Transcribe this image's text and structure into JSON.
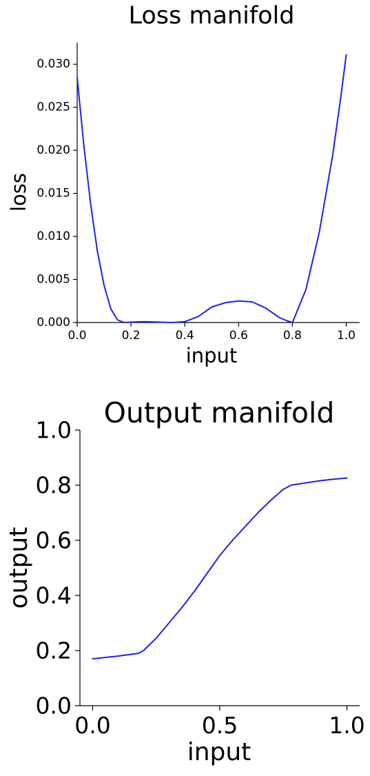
{
  "chart_data": [
    {
      "type": "line",
      "title": "Loss manifold",
      "xlabel": "input",
      "ylabel": "loss",
      "xlim": [
        0.0,
        1.05
      ],
      "ylim": [
        0.0,
        0.0325
      ],
      "xticks": [
        0.0,
        0.2,
        0.4,
        0.6,
        0.8,
        1.0
      ],
      "xtick_labels": [
        "0.0",
        "0.2",
        "0.4",
        "0.6",
        "0.8",
        "1.0"
      ],
      "yticks": [
        0.0,
        0.005,
        0.01,
        0.015,
        0.02,
        0.025,
        0.03
      ],
      "ytick_labels": [
        "0.000",
        "0.005",
        "0.010",
        "0.015",
        "0.020",
        "0.025",
        "0.030"
      ],
      "grid": false,
      "color": "#1f1fef",
      "series": [
        {
          "x": [
            0.0,
            0.025,
            0.05,
            0.075,
            0.1,
            0.125,
            0.15,
            0.175,
            0.2,
            0.25,
            0.3,
            0.35,
            0.4,
            0.45,
            0.5,
            0.55,
            0.6,
            0.65,
            0.7,
            0.75,
            0.78,
            0.8,
            0.85,
            0.9,
            0.95,
            0.98,
            1.0
          ],
          "y": [
            0.0285,
            0.0205,
            0.0138,
            0.0083,
            0.0043,
            0.0016,
            0.0003,
            0.0,
            5e-05,
            0.0001,
            5e-05,
            0.0,
            0.0001,
            0.0007,
            0.0018,
            0.0023,
            0.0025,
            0.0024,
            0.0017,
            0.0006,
            0.0002,
            0.0,
            0.0038,
            0.0105,
            0.0195,
            0.0262,
            0.0311
          ]
        }
      ]
    },
    {
      "type": "line",
      "title": "Output manifold",
      "xlabel": "input",
      "ylabel": "output",
      "xlim": [
        -0.05,
        1.05
      ],
      "ylim": [
        0.0,
        1.0
      ],
      "xticks": [
        0.0,
        0.5,
        1.0
      ],
      "xtick_labels": [
        "0.0",
        "0.5",
        "1.0"
      ],
      "yticks": [
        0.0,
        0.2,
        0.4,
        0.6,
        0.8,
        1.0
      ],
      "ytick_labels": [
        "0.0",
        "0.2",
        "0.4",
        "0.6",
        "0.8",
        "1.0"
      ],
      "grid": false,
      "color": "#1f1fef",
      "series": [
        {
          "x": [
            0.0,
            0.1,
            0.18,
            0.2,
            0.25,
            0.3,
            0.35,
            0.4,
            0.45,
            0.5,
            0.55,
            0.6,
            0.65,
            0.7,
            0.75,
            0.78,
            0.85,
            0.9,
            0.95,
            1.0
          ],
          "y": [
            0.17,
            0.18,
            0.19,
            0.2,
            0.245,
            0.3,
            0.355,
            0.415,
            0.48,
            0.545,
            0.6,
            0.65,
            0.7,
            0.745,
            0.785,
            0.8,
            0.81,
            0.817,
            0.822,
            0.826
          ]
        }
      ]
    }
  ]
}
